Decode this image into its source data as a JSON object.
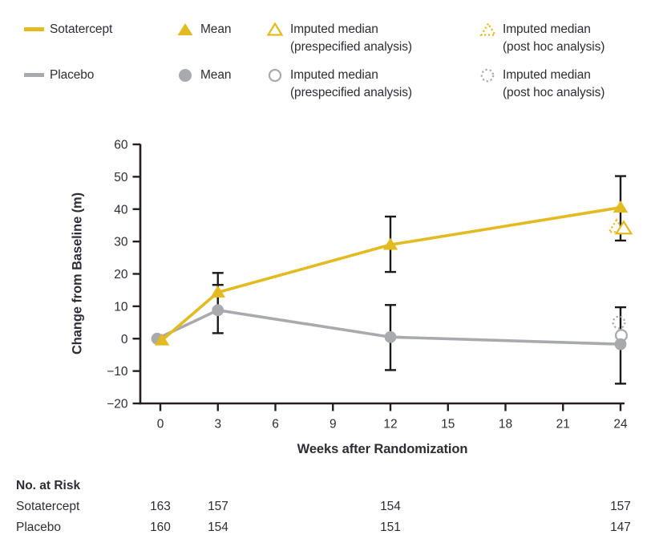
{
  "colors": {
    "sotatercept": "#E3BB21",
    "placebo": "#A8AAAD",
    "axis": "#231F20",
    "error_bar": "#1A1A1A",
    "text": "#2D2D35"
  },
  "legend": {
    "rows": [
      {
        "series": "Sotatercept",
        "mean_label": "Mean",
        "prespecified_line1": "Imputed median",
        "prespecified_line2": "(prespecified analysis)",
        "posthoc_line1": "Imputed median",
        "posthoc_line2": "(post hoc analysis)"
      },
      {
        "series": "Placebo",
        "mean_label": "Mean",
        "prespecified_line1": "Imputed median",
        "prespecified_line2": "(prespecified analysis)",
        "posthoc_line1": "Imputed median",
        "posthoc_line2": "(post hoc analysis)"
      }
    ]
  },
  "chart_data": {
    "type": "line",
    "title": "",
    "xlabel": "Weeks after Randomization",
    "ylabel": "Change from Baseline (m)",
    "x": [
      0,
      3,
      12,
      24
    ],
    "xticks": [
      0,
      3,
      6,
      9,
      12,
      15,
      18,
      21,
      24
    ],
    "yticks": [
      60,
      50,
      40,
      30,
      20,
      10,
      0,
      -10,
      -20
    ],
    "ytick_labels": [
      "60",
      "50",
      "40",
      "30",
      "20",
      "10",
      "0",
      "−10",
      "−20"
    ],
    "xlim": [
      0,
      24
    ],
    "ylim": [
      -20,
      60
    ],
    "grid": false,
    "series": [
      {
        "name": "Sotatercept",
        "color_key": "sotatercept",
        "marker": "triangle",
        "mean": [
          -0.5,
          14.3,
          29.0,
          40.5
        ],
        "ci_low": [
          null,
          8.3,
          20.6,
          30.3
        ],
        "ci_high": [
          null,
          20.3,
          37.7,
          50.2
        ],
        "imputed_median_prespecified": {
          "x": 24,
          "y": 34.0
        },
        "imputed_median_posthoc": {
          "x": 24,
          "y": 34.5
        }
      },
      {
        "name": "Placebo",
        "color_key": "placebo",
        "marker": "circle",
        "mean": [
          0,
          8.8,
          0.5,
          -1.7
        ],
        "ci_low": [
          null,
          1.7,
          -9.7,
          -13.9
        ],
        "ci_high": [
          null,
          16.6,
          10.4,
          9.7
        ],
        "imputed_median_prespecified": {
          "x": 24,
          "y": 1.0
        },
        "imputed_median_posthoc": {
          "x": 24,
          "y": 5.0
        }
      }
    ]
  },
  "risk_table": {
    "title": "No. at Risk",
    "weeks": [
      0,
      3,
      12,
      24
    ],
    "rows": [
      {
        "label": "Sotatercept",
        "values": [
          "163",
          "157",
          "154",
          "157"
        ]
      },
      {
        "label": "Placebo",
        "values": [
          "160",
          "154",
          "151",
          "147"
        ]
      }
    ]
  }
}
